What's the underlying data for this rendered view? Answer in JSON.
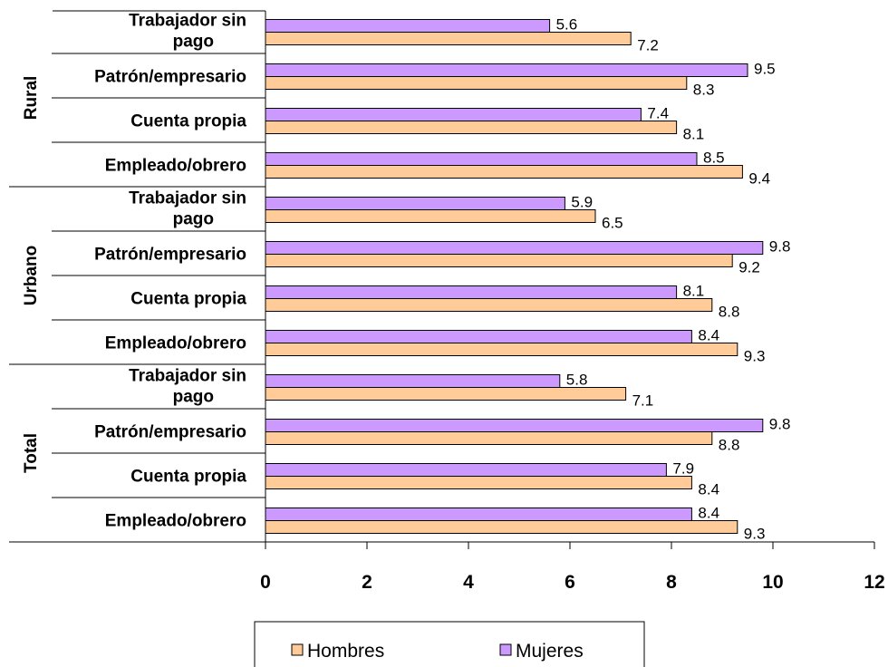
{
  "chart_data": {
    "type": "bar",
    "orientation": "horizontal",
    "groups": [
      {
        "name": "Total",
        "categories": [
          "Empleado/obrero",
          "Cuenta propia",
          "Patrón/empresario",
          "Trabajador sin pago"
        ]
      },
      {
        "name": "Urbano",
        "categories": [
          "Empleado/obrero",
          "Cuenta propia",
          "Patrón/empresario",
          "Trabajador sin pago"
        ]
      },
      {
        "name": "Rural",
        "categories": [
          "Empleado/obrero",
          "Cuenta propia",
          "Patrón/empresario",
          "Trabajador sin pago"
        ]
      }
    ],
    "category_lines": {
      "Trabajador sin pago": [
        "Trabajador sin",
        "pago"
      ]
    },
    "series": [
      {
        "name": "Hombres",
        "color": "#FFCC99",
        "values": [
          [
            9.3,
            8.4,
            8.8,
            7.1
          ],
          [
            9.3,
            8.8,
            9.2,
            6.5
          ],
          [
            9.4,
            8.1,
            8.3,
            7.2
          ]
        ],
        "labels": [
          [
            "9.3",
            "8.4",
            "8.8",
            "7.1"
          ],
          [
            "9.3",
            "8.8",
            "9.2",
            "6.5"
          ],
          [
            "9.4",
            "8.1",
            "8.3",
            "7.2"
          ]
        ]
      },
      {
        "name": "Mujeres",
        "color": "#CC99FF",
        "values": [
          [
            8.4,
            7.9,
            9.8,
            5.8
          ],
          [
            8.4,
            8.1,
            9.8,
            5.9
          ],
          [
            8.5,
            7.4,
            9.5,
            5.6
          ]
        ],
        "labels": [
          [
            "8.4",
            "7.9",
            "9.8",
            "5.8"
          ],
          [
            "8.4",
            "8.1",
            "9.8",
            "5.9"
          ],
          [
            "8.5",
            "7.4",
            "9.5",
            "5.6"
          ]
        ]
      }
    ],
    "xlim": [
      0,
      12
    ],
    "ticks": [
      "0",
      "2",
      "4",
      "6",
      "8",
      "10",
      "12"
    ],
    "grid": false,
    "legend_position": "bottom"
  }
}
